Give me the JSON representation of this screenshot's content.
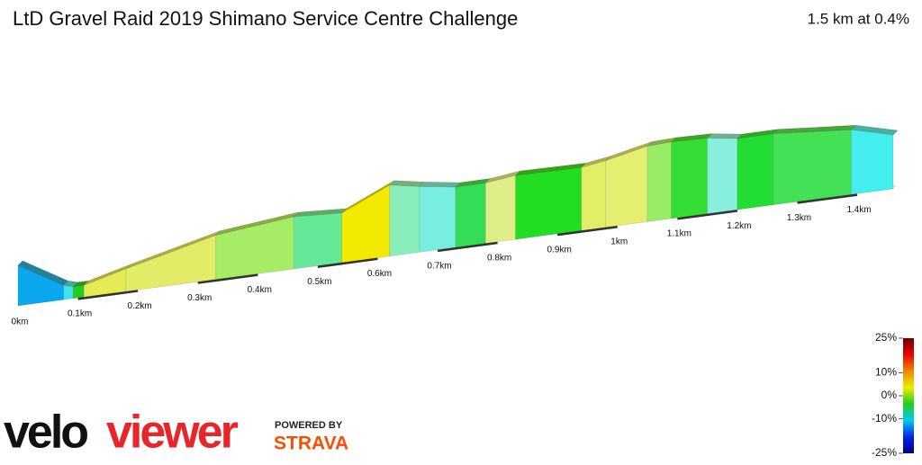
{
  "chart_data": {
    "type": "profile",
    "title": "LtD Gravel Raid 2019 Shimano Service Centre Challenge",
    "subtitle": "1.5 km at 0.4%",
    "x": [
      0,
      0.076,
      0.092,
      0.11,
      0.18,
      0.33,
      0.46,
      0.54,
      0.62,
      0.67,
      0.73,
      0.78,
      0.83,
      0.94,
      0.98,
      1.05,
      1.09,
      1.15,
      1.2,
      1.26,
      1.39,
      1.46
    ],
    "values": [
      24.5,
      21.6,
      21.3,
      21.3,
      22.5,
      24.9,
      25.8,
      25.5,
      27.9,
      27.3,
      26.7,
      26.7,
      27.1,
      27.0,
      27.4,
      28.4,
      28.5,
      28.4,
      27.9,
      27.9,
      27.2,
      26.0
    ],
    "segment_colors": [
      "#0aa6ee",
      "#3fe2ee",
      "#22cc22",
      "#e4ec55",
      "#e2ec66",
      "#a6ec66",
      "#66e899",
      "#f2ea00",
      "#88ecbb",
      "#77eee0",
      "#33dd55",
      "#e0ee88",
      "#22dd22",
      "#e2ee66",
      "#e4ee70",
      "#99ec66",
      "#33dd33",
      "#88eedd",
      "#22dd33",
      "#44e055",
      "#44eeee"
    ],
    "ylim": [
      20,
      30
    ],
    "xlim": [
      0,
      1.46
    ],
    "xticks": [
      {
        "value": 0,
        "label": "0km"
      },
      {
        "value": 0.1,
        "label": "0.1km"
      },
      {
        "value": 0.2,
        "label": "0.2km"
      },
      {
        "value": 0.3,
        "label": "0.3km"
      },
      {
        "value": 0.4,
        "label": "0.4km"
      },
      {
        "value": 0.5,
        "label": "0.5km"
      },
      {
        "value": 0.6,
        "label": "0.6km"
      },
      {
        "value": 0.7,
        "label": "0.7km"
      },
      {
        "value": 0.8,
        "label": "0.8km"
      },
      {
        "value": 0.9,
        "label": "0.9km"
      },
      {
        "value": 1,
        "label": "1km"
      },
      {
        "value": 1.1,
        "label": "1.1km"
      },
      {
        "value": 1.2,
        "label": "1.2km"
      },
      {
        "value": 1.3,
        "label": "1.3km"
      },
      {
        "value": 1.4,
        "label": "1.4km"
      }
    ],
    "colorbar": {
      "lim": [
        -25,
        25
      ],
      "ticks": [
        {
          "value": 25,
          "label": "25%"
        },
        {
          "value": 10,
          "label": "10%"
        },
        {
          "value": 0,
          "label": "0%"
        },
        {
          "value": -10,
          "label": "-10%"
        },
        {
          "value": -25,
          "label": "-25%"
        }
      ],
      "colors": [
        "#000088",
        "#0022ee",
        "#00ccee",
        "#22cc22",
        "#eeee00",
        "#ee8800",
        "#ee0000",
        "#660000"
      ]
    }
  },
  "branding": {
    "logo_left": "velo",
    "logo_right": "viewer",
    "powered": "POWERED BY",
    "strava": "STRAVA"
  }
}
